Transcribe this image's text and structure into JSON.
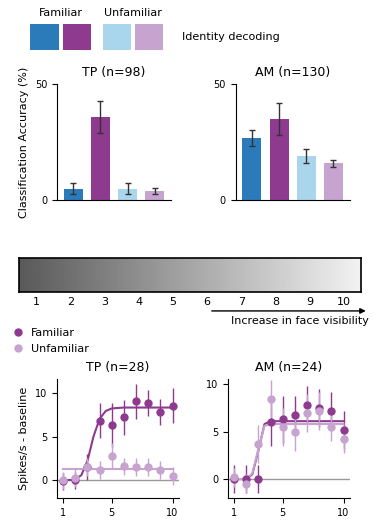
{
  "header": {
    "groups": [
      {
        "label": "Familiar",
        "colors": [
          "#2b7bba",
          "#8e3a8f"
        ]
      },
      {
        "label": "Unfamiliar",
        "colors": [
          "#a9d6ec",
          "#c7a3cf"
        ]
      }
    ],
    "caption": "Identity decoding"
  },
  "strip": {
    "levels": [
      1,
      2,
      3,
      4,
      5,
      6,
      7,
      8,
      9,
      10
    ],
    "label": "Increase in face visibility"
  },
  "chart_data": [
    {
      "type": "bar",
      "title": "TP (n=98)",
      "y_label": "Classification Accuracy (%)",
      "categories": [
        null,
        null,
        null,
        null
      ],
      "values": [
        5,
        36,
        5,
        4
      ],
      "errors": [
        2.5,
        7,
        2.5,
        1.5
      ],
      "colors": [
        "#2b7bba",
        "#8e3a8f",
        "#a9d6ec",
        "#c7a3cf"
      ],
      "ylim": [
        0,
        50
      ],
      "yticks": [
        0,
        50
      ],
      "tick_labels": "y"
    },
    {
      "type": "bar",
      "title": "AM (n=130)",
      "categories": [
        null,
        null,
        null,
        null
      ],
      "values": [
        27,
        35,
        19,
        16
      ],
      "errors": [
        3.5,
        7,
        3,
        1.5
      ],
      "colors": [
        "#2b7bba",
        "#8e3a8f",
        "#a9d6ec",
        "#c7a3cf"
      ],
      "ylim": [
        0,
        50
      ],
      "yticks": [
        0,
        50
      ],
      "tick_labels": "y"
    },
    {
      "type": "line",
      "title": "TP (n=28)",
      "y_label": "Spikes/s - baseline",
      "x": [
        1,
        2,
        3,
        4,
        5,
        6,
        7,
        8,
        9,
        10
      ],
      "baseline": 0,
      "series": [
        {
          "name": "Familiar",
          "color": "#8e3a8f",
          "marker": "o",
          "values": [
            -0.1,
            0,
            1.5,
            6.8,
            6.3,
            7.2,
            9.0,
            8.8,
            7.8,
            8.5
          ],
          "errors": [
            1,
            1,
            1.5,
            2,
            2.5,
            2,
            2,
            1.5,
            1.5,
            2
          ],
          "fit": {
            "x": [
              1,
              2,
              2.5,
              3,
              3.5,
              4,
              4.5,
              5,
              6,
              10
            ],
            "values": [
              0,
              0.1,
              0.6,
              2.2,
              5.0,
              7.0,
              7.9,
              8.2,
              8.3,
              8.3
            ]
          }
        },
        {
          "name": "Unfamiliar",
          "color": "#c7a3cf",
          "marker": "o",
          "values": [
            0,
            0.3,
            1.5,
            1.2,
            2.8,
            1.6,
            1.5,
            1.5,
            1.2,
            0.5
          ],
          "errors": [
            1,
            1,
            1,
            1,
            1.5,
            1,
            1,
            1,
            1,
            1
          ],
          "fit": {
            "x": [
              1,
              10
            ],
            "values": [
              1.3,
              1.3
            ]
          }
        }
      ],
      "xlim": [
        0.5,
        10.5
      ],
      "xticks": [
        1,
        5,
        10
      ],
      "ylim": [
        -2,
        11.5
      ],
      "yticks": [
        0,
        5,
        10
      ],
      "legend": "upper left"
    },
    {
      "type": "line",
      "title": "AM (n=24)",
      "x": [
        1,
        2,
        3,
        4,
        5,
        6,
        7,
        8,
        9,
        10
      ],
      "baseline": 0,
      "series": [
        {
          "name": "Familiar",
          "color": "#8e3a8f",
          "marker": "o",
          "values": [
            0,
            0,
            0,
            6,
            6.3,
            6.8,
            7.8,
            7.5,
            7.2,
            5.2
          ],
          "errors": [
            1.5,
            1.5,
            1.5,
            2.5,
            2.5,
            2,
            2,
            2,
            2,
            2
          ],
          "fit": {
            "x": [
              1,
              2,
              2.5,
              3,
              3.5,
              4,
              10
            ],
            "values": [
              0,
              0,
              0.5,
              3.0,
              5.8,
              6.1,
              6.1
            ]
          }
        },
        {
          "name": "Unfamiliar",
          "color": "#c7a3cf",
          "marker": "o",
          "values": [
            0.2,
            -0.5,
            3.7,
            8.4,
            5.5,
            5.0,
            7.0,
            7.2,
            5.5,
            4.2
          ],
          "errors": [
            1,
            1,
            2,
            2,
            2,
            2,
            2,
            2,
            1.5,
            1.5
          ],
          "fit": {
            "x": [
              1,
              2,
              2.5,
              3,
              3.5,
              4,
              10
            ],
            "values": [
              0,
              0,
              0.6,
              3.2,
              5.6,
              5.8,
              5.8
            ]
          }
        }
      ],
      "xlim": [
        0.5,
        10.5
      ],
      "xticks": [
        1,
        5,
        10
      ],
      "ylim": [
        -2,
        10.5
      ],
      "yticks": [
        0,
        5,
        10
      ]
    }
  ]
}
